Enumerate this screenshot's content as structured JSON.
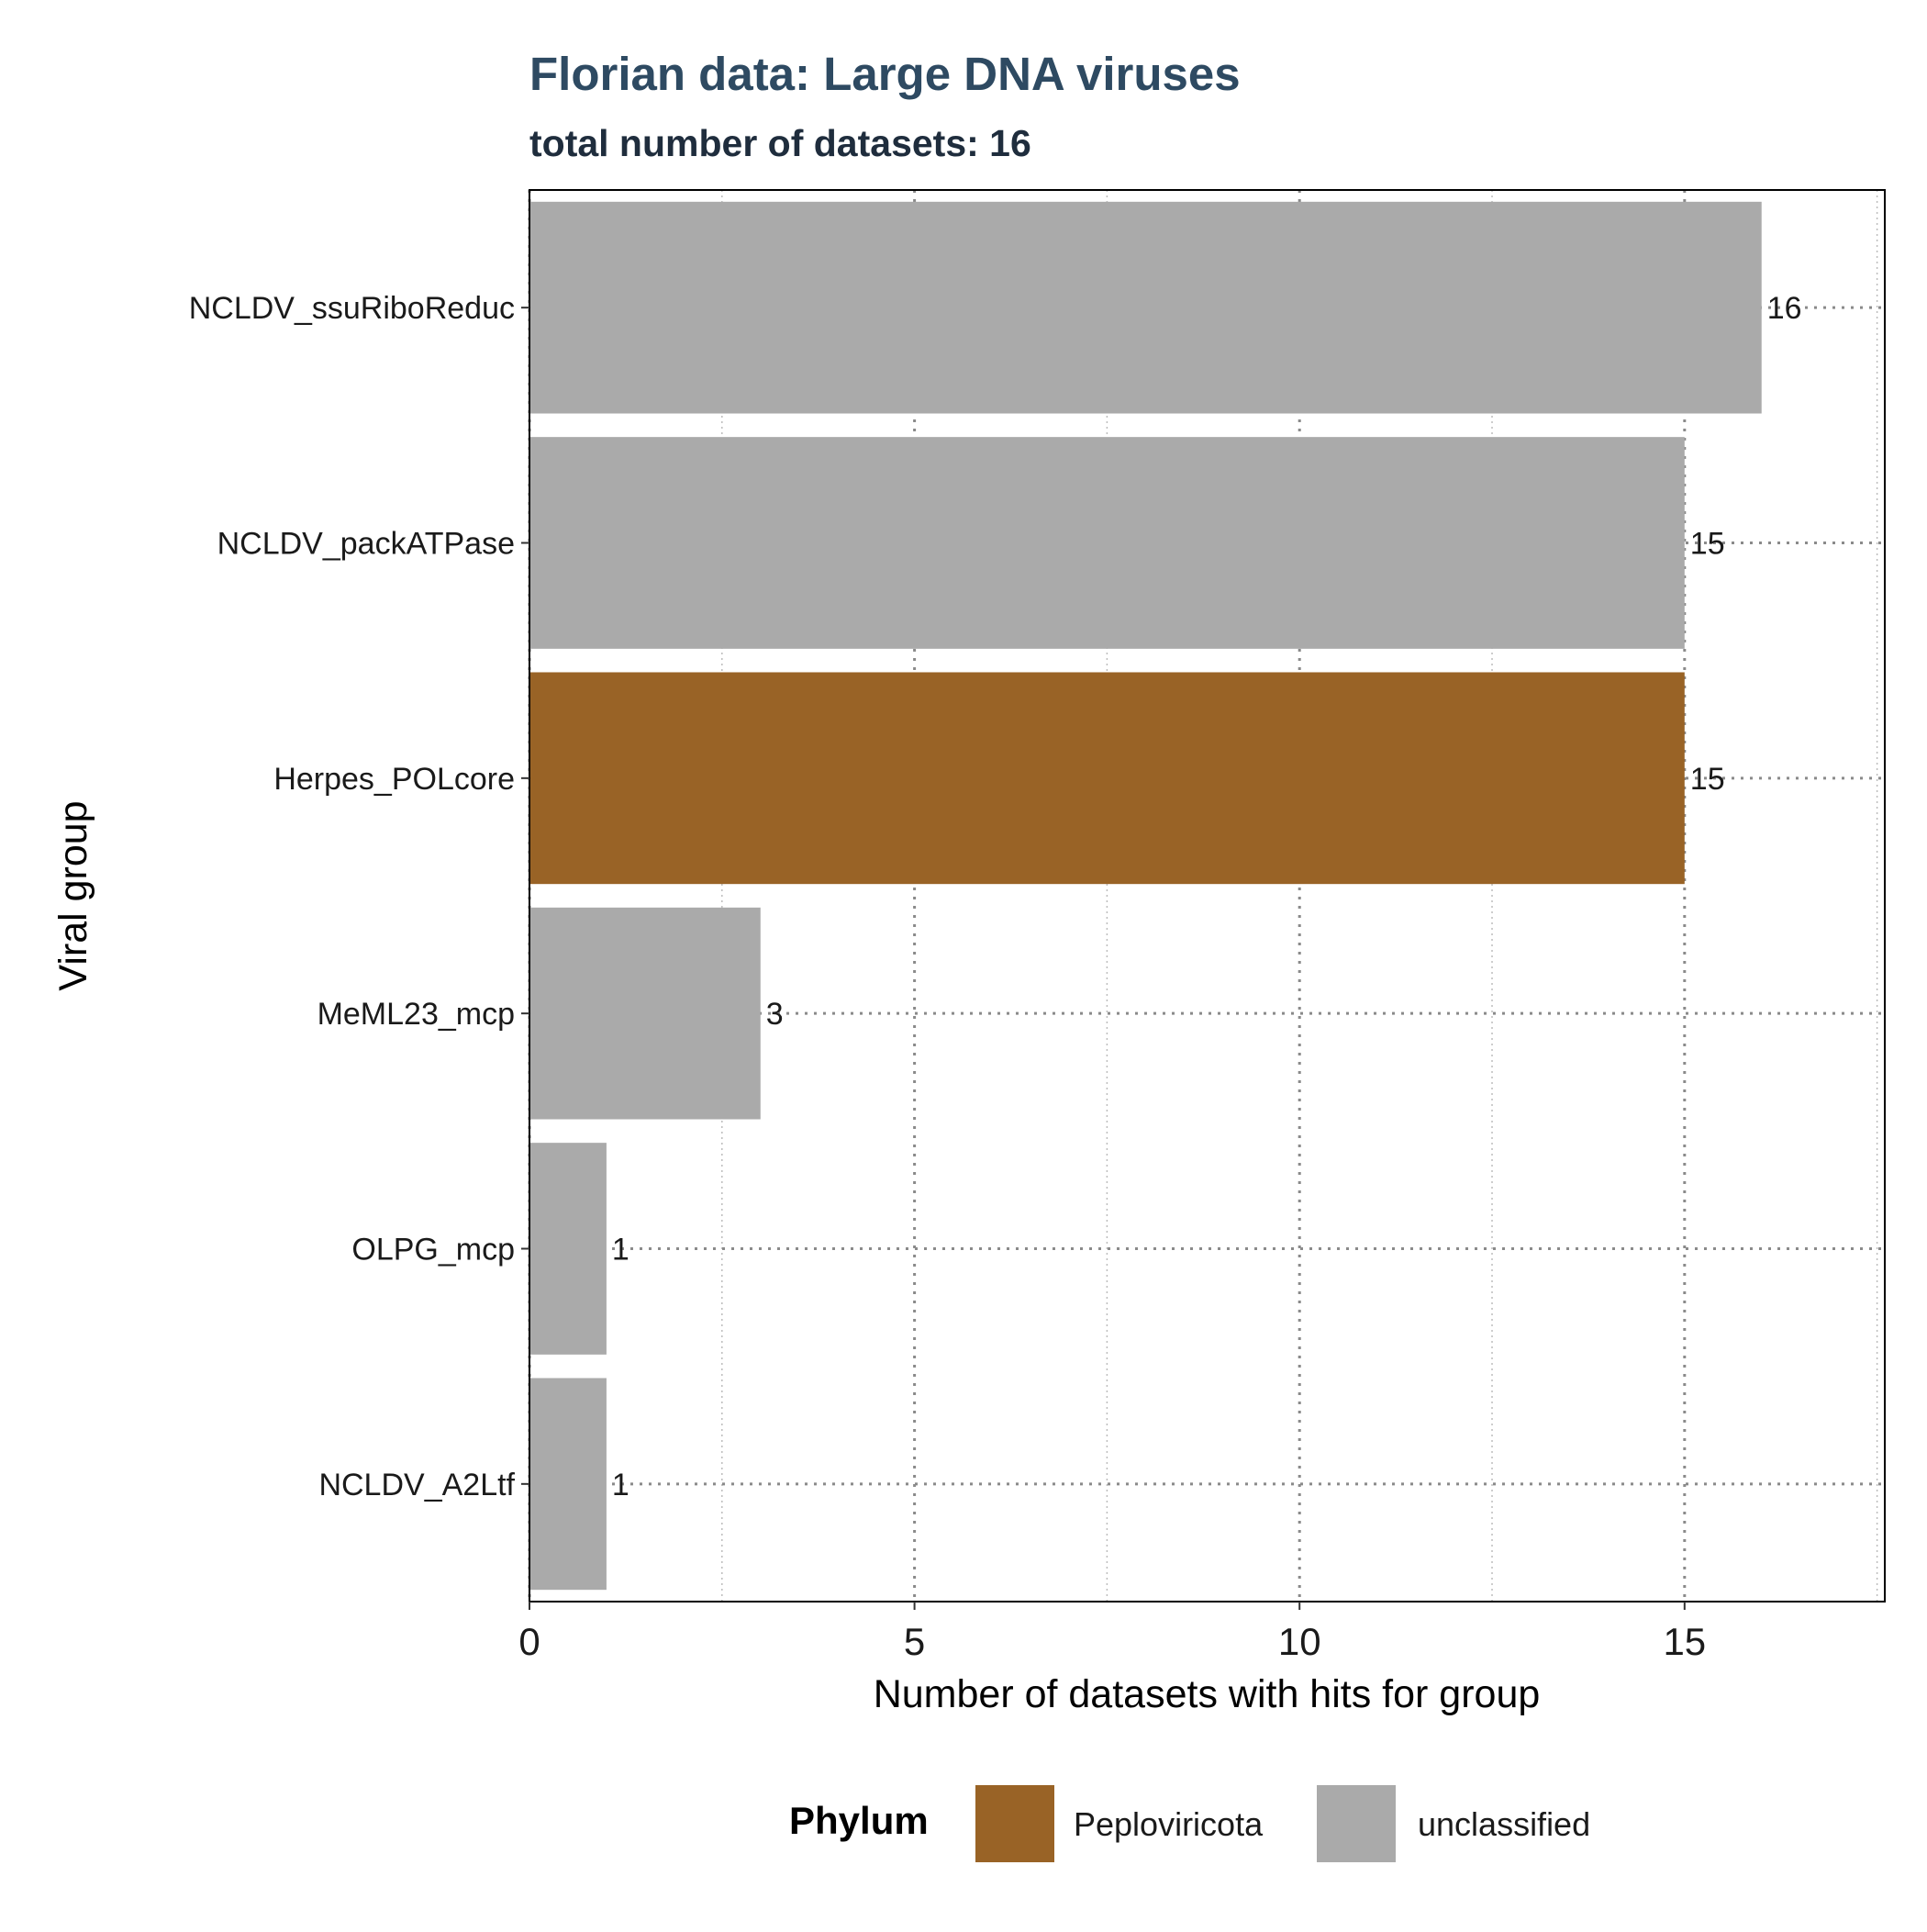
{
  "chart_data": {
    "type": "bar",
    "orientation": "horizontal",
    "title": "Florian data: Large DNA viruses",
    "subtitle": "total number of datasets: 16",
    "xlabel": "Number of datasets with hits for group",
    "ylabel": "Viral group",
    "xlim": [
      0,
      17.6
    ],
    "x_ticks": [
      0,
      5,
      10,
      15
    ],
    "x_tick_labels": [
      "0",
      "5",
      "10",
      "15"
    ],
    "grid": true,
    "legend_position": "bottom",
    "legend_title": "Phylum",
    "legend": [
      {
        "name": "Peploviricota",
        "color": "#996326"
      },
      {
        "name": "unclassified",
        "color": "#aaaaaa"
      }
    ],
    "categories": [
      "NCLDV_ssuRiboReduc",
      "NCLDV_packATPase",
      "Herpes_POLcore",
      "MeML23_mcp",
      "OLPG_mcp",
      "NCLDV_A2Ltf"
    ],
    "values": [
      16,
      15,
      15,
      3,
      1,
      1
    ],
    "labels": [
      "16",
      "15",
      "15",
      "3",
      "1",
      "1"
    ],
    "phylum": [
      "unclassified",
      "unclassified",
      "Peploviricota",
      "unclassified",
      "unclassified",
      "unclassified"
    ]
  },
  "colors": {
    "title": "#2e4a62",
    "subtitle": "#1f2d3d",
    "grid": "#8a8a8a",
    "frame": "#000000"
  }
}
